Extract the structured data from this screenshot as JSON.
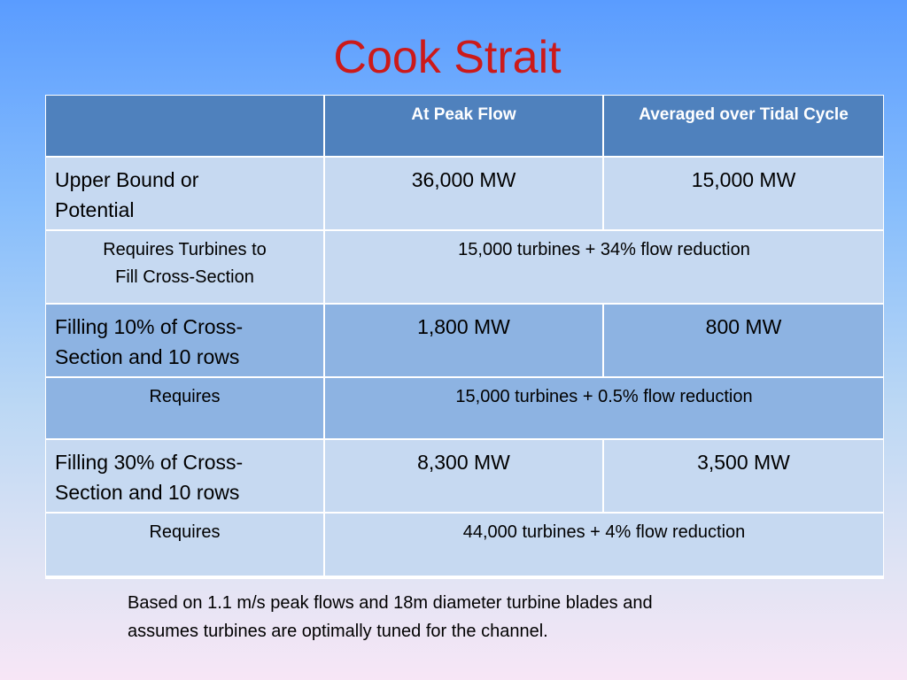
{
  "slide": {
    "title": "Cook Strait",
    "footnote_line1": "Based on 1.1 m/s peak flows and 18m diameter turbine blades and",
    "footnote_line2": "assumes turbines are optimally tuned for the channel."
  },
  "table": {
    "header": {
      "col1": "",
      "col2": "At Peak Flow",
      "col3": "Averaged over Tidal Cycle"
    },
    "rows": [
      {
        "label_line1": "Upper Bound or",
        "label_line2": "Potential",
        "peak": "36,000 MW",
        "averaged": "15,000 MW"
      },
      {
        "label_line1": "Requires Turbines  to",
        "label_line2": "Fill Cross-Section",
        "requirement": "15,000 turbines + 34% flow reduction"
      },
      {
        "label_line1": "Filling 10% of Cross-",
        "label_line2": "Section  and 10 rows",
        "peak": "1,800 MW",
        "averaged": "800 MW"
      },
      {
        "label": "Requires",
        "requirement": "15,000 turbines + 0.5% flow reduction"
      },
      {
        "label_line1": "Filling 30% of Cross-",
        "label_line2": "Section  and 10 rows",
        "peak": "8,300 MW",
        "averaged": "3,500 MW"
      },
      {
        "label": "Requires",
        "requirement": "44,000 turbines + 4% flow reduction"
      }
    ]
  }
}
